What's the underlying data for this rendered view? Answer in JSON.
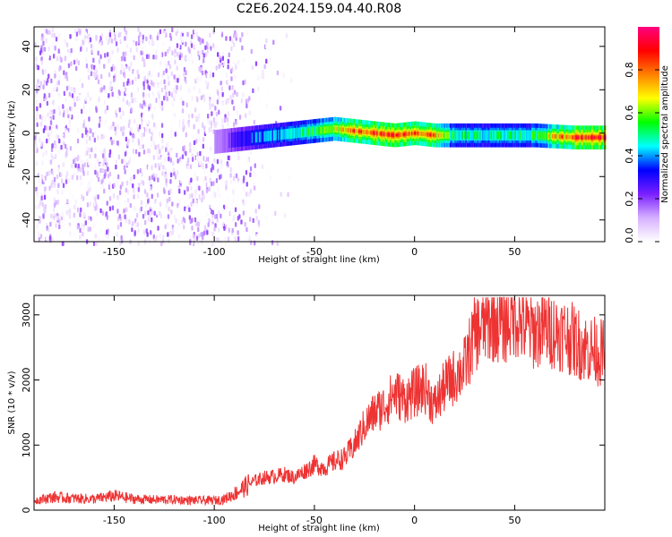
{
  "title": "C2E6.2024.159.04.40.R08",
  "chart_data": [
    {
      "type": "heatmap",
      "xlabel": "Height of straight line (km)",
      "ylabel": "Frequency (Hz)",
      "xlim": [
        -190,
        95
      ],
      "ylim": [
        -50,
        49
      ],
      "xticks": [
        -150,
        -100,
        -50,
        0,
        50
      ],
      "yticks": [
        -40,
        -20,
        0,
        20,
        40
      ],
      "colorbar": {
        "label": "Normalized spectral amplitude",
        "range": [
          0,
          1
        ],
        "ticks": [
          "0.0",
          "0.2",
          "0.4",
          "0.6",
          "0.8"
        ],
        "tick_values": [
          0,
          0.2,
          0.4,
          0.6,
          0.8
        ],
        "colormap": [
          "#ffffff",
          "#d6b0ff",
          "#7a1fff",
          "#0000ff",
          "#00ffff",
          "#00ff00",
          "#ffff00",
          "#ff8000",
          "#ff0000",
          "#ff0080"
        ]
      },
      "noise_region_x": [
        -190,
        -88
      ],
      "noise_fade_x": [
        -88,
        -60
      ],
      "ridge": {
        "x": [
          -100,
          -90,
          -80,
          -70,
          -60,
          -50,
          -40,
          -30,
          -20,
          -10,
          0,
          10,
          20,
          40,
          60,
          80,
          95
        ],
        "freq": [
          -4,
          -3,
          -2,
          -1,
          0,
          1,
          2,
          1,
          0,
          -1,
          0,
          -1,
          -1,
          -1,
          -1,
          -2,
          -2
        ],
        "amplitude": [
          0.15,
          0.3,
          0.4,
          0.45,
          0.5,
          0.55,
          0.7,
          0.85,
          0.9,
          0.9,
          0.88,
          0.85,
          0.5,
          0.5,
          0.55,
          0.95,
          0.98
        ]
      }
    },
    {
      "type": "line",
      "xlabel": "Height of straight line (km)",
      "ylabel": "SNR (10 * v/v)",
      "xlim": [
        -190,
        95
      ],
      "ylim": [
        0,
        3300
      ],
      "xticks": [
        -150,
        -100,
        -50,
        0,
        50
      ],
      "yticks": [
        0,
        1000,
        2000,
        3000
      ],
      "color": "#ee3333",
      "series": [
        {
          "x": [
            -190,
            -180,
            -170,
            -160,
            -150,
            -140,
            -130,
            -120,
            -110,
            -100,
            -95,
            -90,
            -85,
            -80,
            -75,
            -70,
            -65,
            -60,
            -55,
            -50,
            -45,
            -40,
            -35,
            -30,
            -25,
            -20,
            -15,
            -10,
            -5,
            0,
            5,
            10,
            15,
            20,
            25,
            30,
            35,
            40,
            45,
            50,
            55,
            60,
            65,
            70,
            75,
            80,
            85,
            90,
            95
          ],
          "y": [
            150,
            200,
            180,
            170,
            220,
            170,
            160,
            160,
            150,
            150,
            170,
            250,
            350,
            450,
            500,
            520,
            550,
            500,
            600,
            700,
            650,
            750,
            800,
            1000,
            1300,
            1500,
            1600,
            1800,
            1700,
            1800,
            1900,
            1600,
            1900,
            2050,
            2200,
            2700,
            2850,
            2900,
            2850,
            3000,
            2800,
            2750,
            2800,
            2750,
            2700,
            2600,
            2500,
            2450,
            2400
          ]
        }
      ]
    }
  ]
}
